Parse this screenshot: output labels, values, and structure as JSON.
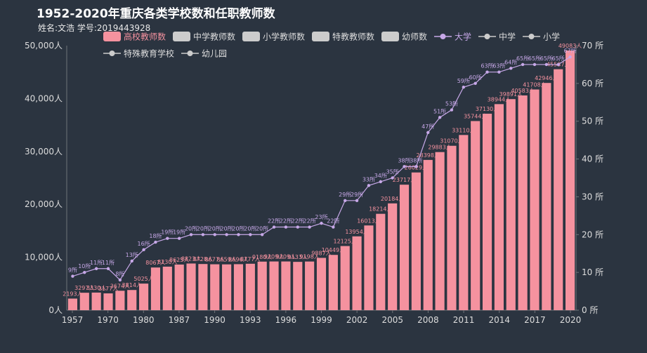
{
  "chart_data": {
    "type": "bar+line",
    "title": "1952-2020年重庆各类学校数和任职教师数",
    "subtitle": "姓名:文浩 学号:2019443928",
    "colors": {
      "background": "#2b3440",
      "bar": "#f5929f",
      "line": "#c7a8e8",
      "legend_inactive": "#cccccc",
      "text": "#dddddd",
      "bar_label": "#f5929f",
      "line_label": "#c7a8e8"
    },
    "legend": {
      "placement": "top",
      "items": [
        {
          "name": "高校教师数",
          "kind": "bar",
          "active": true
        },
        {
          "name": "中学教师数",
          "kind": "bar",
          "active": false
        },
        {
          "name": "小学教师数",
          "kind": "bar",
          "active": false
        },
        {
          "name": "特教教师数",
          "kind": "bar",
          "active": false
        },
        {
          "name": "幼师数",
          "kind": "bar",
          "active": false
        },
        {
          "name": "大学",
          "kind": "line",
          "active": true
        },
        {
          "name": "中学",
          "kind": "line",
          "active": false
        },
        {
          "name": "小学",
          "kind": "line",
          "active": false
        },
        {
          "name": "特殊教育学校",
          "kind": "line",
          "active": false
        },
        {
          "name": "幼儿园",
          "kind": "line",
          "active": false
        }
      ]
    },
    "x_tick_labels": [
      "1957",
      "1970",
      "1980",
      "1987",
      "1990",
      "1993",
      "1996",
      "1999",
      "2002",
      "2005",
      "2008",
      "2011",
      "2014",
      "2017",
      "2020"
    ],
    "left_axis": {
      "ylim": [
        0,
        50000
      ],
      "ticks": [
        "0人",
        "10,000人",
        "20,000人",
        "30,000人",
        "40,000人",
        "50,000人"
      ]
    },
    "right_axis": {
      "ylim": [
        0,
        70
      ],
      "ticks": [
        "0 所",
        "10 所",
        "20 所",
        "30 所",
        "40 所",
        "50 所",
        "60 所",
        "70 所"
      ]
    },
    "bar_series": {
      "name": "高校教师数",
      "values": [
        2193,
        3297,
        3330,
        3177,
        3674,
        3814,
        5025,
        8067,
        8230,
        8625,
        8823,
        8728,
        8677,
        8659,
        8696,
        8777,
        9180,
        9209,
        9209,
        9133,
        9198,
        9887,
        10449,
        12125,
        13954,
        16013,
        18214,
        20184,
        23717,
        26029,
        28398,
        29883,
        31070,
        33110,
        35744,
        37130,
        38944,
        39891,
        40583,
        41708,
        42946,
        45537,
        49083
      ],
      "labels": [
        "2193人",
        "3297人",
        "3330人",
        "3177人",
        "3674人",
        "3814人",
        "5025人",
        "8067人",
        "8230人",
        "8625人",
        "8823人",
        "8728人",
        "8677人",
        "8659人",
        "8696人",
        "8777人",
        "9180人",
        "9209人",
        "9209人",
        "9133人",
        "9198人",
        "9887人",
        "10449人",
        "12125人",
        "13954人",
        "16013人",
        "18214人",
        "20184人",
        "23717人",
        "26029人",
        "28398人",
        "29883人",
        "31070人",
        "33110人",
        "35744人",
        "37130人",
        "38944人",
        "39891人",
        "40583人",
        "41708人",
        "42946人",
        "45537人",
        "49083人"
      ]
    },
    "line_series": {
      "name": "大学",
      "values": [
        9,
        10,
        11,
        11,
        8,
        13,
        16,
        18,
        19,
        19,
        20,
        20,
        20,
        20,
        20,
        20,
        20,
        22,
        22,
        22,
        22,
        23,
        22,
        29,
        29,
        33,
        34,
        35,
        38,
        38,
        47,
        51,
        53,
        59,
        60,
        63,
        63,
        64,
        65,
        65,
        65,
        65,
        67
      ],
      "labels": [
        "9所",
        "10所",
        "11所",
        "11所",
        "8所",
        "13所",
        "16所",
        "18所",
        "19所",
        "19所",
        "20所",
        "20所",
        "20所",
        "20所",
        "20所",
        "20所",
        "20所",
        "22所",
        "22所",
        "22所",
        "22所",
        "23所",
        "22所",
        "29所",
        "29所",
        "33所",
        "34所",
        "35所",
        "38所",
        "38所",
        "47所",
        "51所",
        "53所",
        "59所",
        "60所",
        "63所",
        "63所",
        "64所",
        "65所",
        "65所",
        "65所",
        "65所",
        "67所"
      ]
    }
  }
}
